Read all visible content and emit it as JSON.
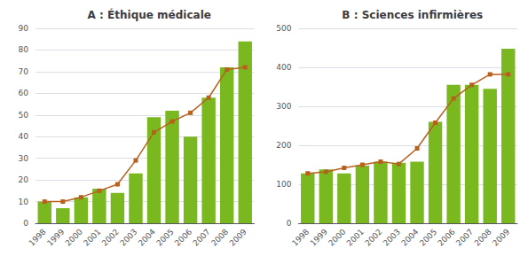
{
  "chart_data": [
    {
      "type": "bar",
      "title": "A : Éthique médicale",
      "categories": [
        "1998",
        "1999",
        "2000",
        "2001",
        "2002",
        "2003",
        "2004",
        "2005",
        "2006",
        "2007",
        "2008",
        "2009"
      ],
      "series": [
        {
          "type": "bar",
          "color": "#7ab820",
          "values": [
            10,
            7,
            12,
            16,
            14,
            23,
            49,
            52,
            40,
            58,
            72,
            84
          ]
        },
        {
          "type": "line",
          "color": "#b8601e",
          "marker": "square",
          "values": [
            10,
            10,
            12,
            15,
            18,
            29,
            42,
            47,
            51,
            58,
            71,
            72
          ]
        }
      ],
      "ylim": [
        0,
        90
      ],
      "yticks": [
        0,
        10,
        20,
        30,
        40,
        50,
        60,
        70,
        80,
        90
      ],
      "grid": true
    },
    {
      "type": "bar",
      "title": "B : Sciences infirmières",
      "categories": [
        "1998",
        "1999",
        "2000",
        "2001",
        "2002",
        "2003",
        "2004",
        "2005",
        "2006",
        "2007",
        "2008",
        "2009"
      ],
      "series": [
        {
          "type": "bar",
          "color": "#7ab820",
          "values": [
            128,
            138,
            128,
            148,
            158,
            155,
            158,
            260,
            355,
            355,
            345,
            448
          ]
        },
        {
          "type": "line",
          "color": "#b8601e",
          "marker": "square",
          "values": [
            128,
            132,
            142,
            150,
            158,
            152,
            192,
            258,
            320,
            355,
            382,
            382
          ]
        }
      ],
      "ylim": [
        0,
        500
      ],
      "yticks": [
        0,
        100,
        200,
        300,
        400,
        500
      ],
      "grid": true
    }
  ]
}
